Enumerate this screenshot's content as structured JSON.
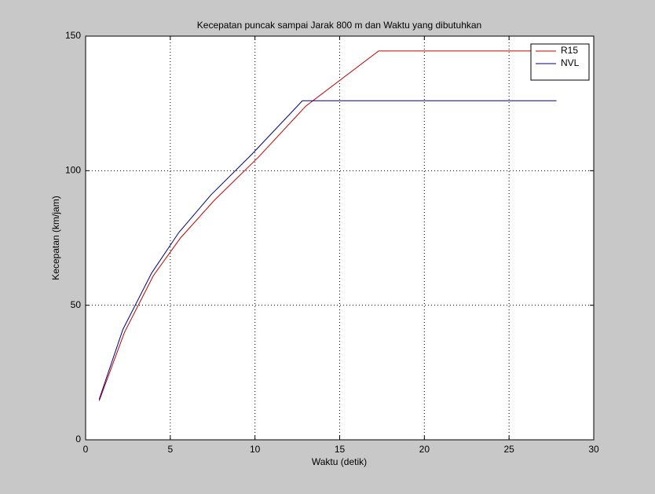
{
  "chart_data": {
    "type": "line",
    "title": "Kecepatan puncak sampai Jarak 800 m dan Waktu yang dibutuhkan",
    "x_label": "Waktu (detik)",
    "y_label": "Kecepatan (km/jam)",
    "series": [
      {
        "name": "R15",
        "color": "#c00000",
        "x": [
          0.8,
          2.3,
          4.0,
          5.6,
          7.6,
          10.2,
          13.0,
          17.3,
          27.8
        ],
        "values": [
          14.5,
          40,
          61,
          75,
          89,
          105,
          124,
          144.5,
          144.5
        ]
      },
      {
        "name": "NVL",
        "color": "#000080",
        "x": [
          0.8,
          2.2,
          3.9,
          5.5,
          7.4,
          9.8,
          12.8,
          27.8
        ],
        "values": [
          15,
          41,
          62,
          77,
          91,
          106,
          126,
          126
        ]
      }
    ],
    "xlim": [
      0,
      30
    ],
    "xticks": [
      0,
      5,
      10,
      15,
      20,
      25,
      30
    ],
    "ylim": [
      0,
      150
    ],
    "yticks": [
      0,
      50,
      100,
      150
    ],
    "grid": true,
    "legend": "top-right"
  }
}
